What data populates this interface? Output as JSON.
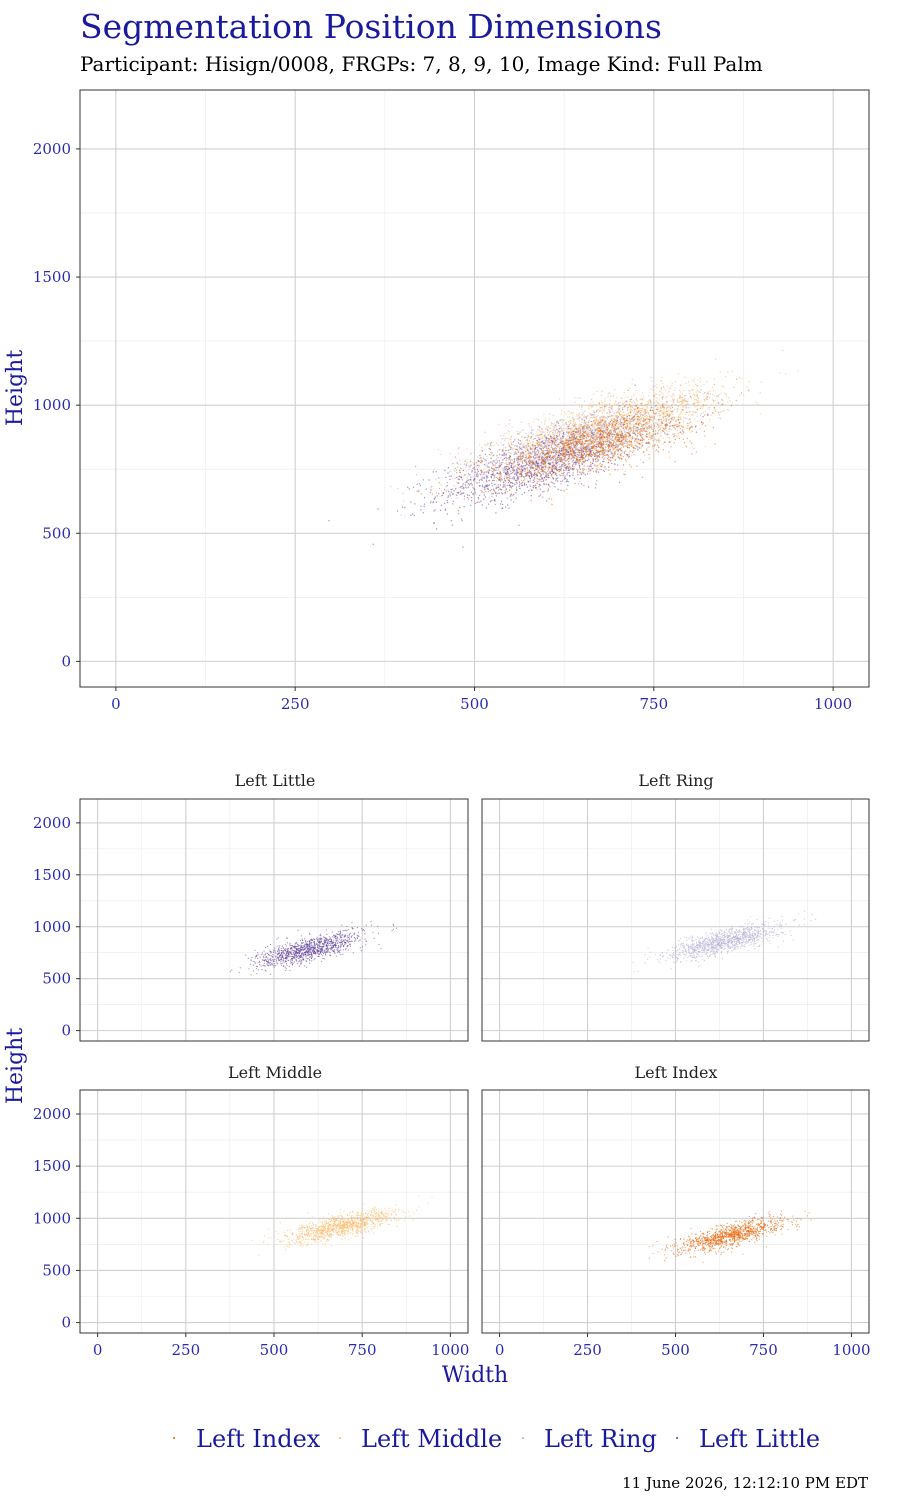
{
  "title": "Segmentation Position Dimensions",
  "subtitle": "Participant: Hisign/0008, FRGPs: 7, 8, 9, 10, Image Kind: Full Palm",
  "timestamp": "11 June 2026, 12:12:10 PM EDT",
  "colors": {
    "Left Index": "#e66101",
    "Left Middle": "#fdb863",
    "Left Ring": "#b2abd2",
    "Left Little": "#5e3c99",
    "text": "#1a1a9c",
    "grid": "#d4d4d4"
  },
  "chart_data": [
    {
      "type": "scatter",
      "panel": "combined",
      "xlabel": "",
      "ylabel": "Height",
      "xlim": [
        -50,
        1050
      ],
      "ylim": [
        -100,
        2230
      ],
      "x_ticks": [
        0,
        250,
        500,
        750,
        1000
      ],
      "y_ticks": [
        0,
        500,
        1000,
        1500,
        2000
      ],
      "grid": true,
      "series": [
        {
          "name": "Left Little",
          "center": [
            600,
            780
          ],
          "spread": [
            75,
            85
          ],
          "range_x": [
            355,
            890
          ],
          "range_y": [
            450,
            1150
          ]
        },
        {
          "name": "Left Ring",
          "center": [
            640,
            860
          ],
          "spread": [
            80,
            85
          ],
          "range_x": [
            400,
            950
          ],
          "range_y": [
            550,
            1230
          ]
        },
        {
          "name": "Left Middle",
          "center": [
            690,
            920
          ],
          "spread": [
            80,
            80
          ],
          "range_x": [
            380,
            950
          ],
          "range_y": [
            430,
            1160
          ]
        },
        {
          "name": "Left Index",
          "center": [
            660,
            840
          ],
          "spread": [
            75,
            80
          ],
          "range_x": [
            390,
            950
          ],
          "range_y": [
            480,
            1160
          ]
        }
      ]
    },
    {
      "type": "scatter",
      "panel": "Left Little",
      "xlim": [
        -50,
        1050
      ],
      "ylim": [
        -100,
        2230
      ],
      "x_ticks": [
        0,
        250,
        500,
        750,
        1000
      ],
      "y_ticks": [
        0,
        500,
        1000,
        1500,
        2000
      ],
      "center": [
        600,
        780
      ],
      "spread": [
        75,
        85
      ]
    },
    {
      "type": "scatter",
      "panel": "Left Ring",
      "xlim": [
        -50,
        1050
      ],
      "ylim": [
        -100,
        2230
      ],
      "x_ticks": [
        0,
        250,
        500,
        750,
        1000
      ],
      "y_ticks": [
        0,
        500,
        1000,
        1500,
        2000
      ],
      "center": [
        640,
        860
      ],
      "spread": [
        80,
        85
      ]
    },
    {
      "type": "scatter",
      "panel": "Left Middle",
      "xlim": [
        -50,
        1050
      ],
      "ylim": [
        -100,
        2230
      ],
      "x_ticks": [
        0,
        250,
        500,
        750,
        1000
      ],
      "y_ticks": [
        0,
        500,
        1000,
        1500,
        2000
      ],
      "center": [
        690,
        920
      ],
      "spread": [
        80,
        80
      ]
    },
    {
      "type": "scatter",
      "panel": "Left Index",
      "xlim": [
        -50,
        1050
      ],
      "ylim": [
        -100,
        2230
      ],
      "x_ticks": [
        0,
        250,
        500,
        750,
        1000
      ],
      "y_ticks": [
        0,
        500,
        1000,
        1500,
        2000
      ],
      "center": [
        660,
        840
      ],
      "spread": [
        75,
        80
      ]
    }
  ],
  "facets": {
    "top_left": "Left Little",
    "top_right": "Left Ring",
    "bottom_left": "Left Middle",
    "bottom_right": "Left Index",
    "xlabel": "Width",
    "ylabel": "Height"
  },
  "legend": {
    "placement": "bottom",
    "items": [
      "Left Index",
      "Left Middle",
      "Left Ring",
      "Left Little"
    ]
  }
}
